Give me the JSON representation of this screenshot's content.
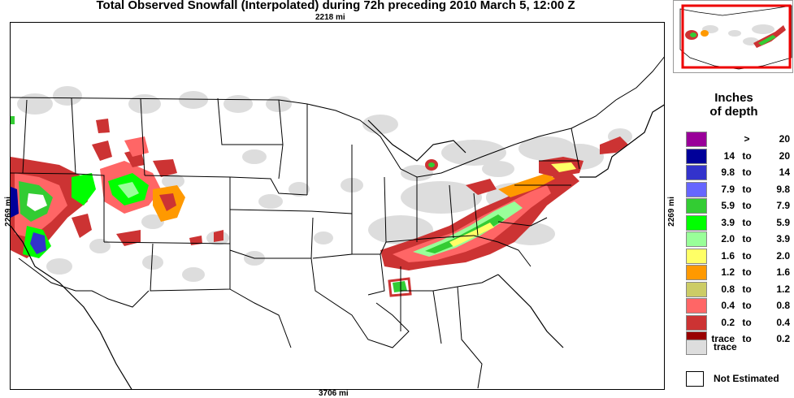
{
  "title": "Total Observed Snowfall (Interpolated) during 72h preceding 2010 March 5, 12:00 Z",
  "distances": {
    "top": "2218 mi",
    "bottom": "3706 mi",
    "left": "2269 mi",
    "right": "2269 mi"
  },
  "legend": {
    "title_line1": "Inches",
    "title_line2": "of depth",
    "rows": [
      {
        "lo": "",
        "to": ">",
        "hi": "20",
        "color": "#990099"
      },
      {
        "lo": "14",
        "to": "to",
        "hi": "20",
        "color": "#000099"
      },
      {
        "lo": "9.8",
        "to": "to",
        "hi": "14",
        "color": "#3333cc"
      },
      {
        "lo": "7.9",
        "to": "to",
        "hi": "9.8",
        "color": "#6666ff"
      },
      {
        "lo": "5.9",
        "to": "to",
        "hi": "7.9",
        "color": "#33cc33"
      },
      {
        "lo": "3.9",
        "to": "to",
        "hi": "5.9",
        "color": "#00ff00"
      },
      {
        "lo": "2.0",
        "to": "to",
        "hi": "3.9",
        "color": "#99ff99"
      },
      {
        "lo": "1.6",
        "to": "to",
        "hi": "2.0",
        "color": "#ffff66"
      },
      {
        "lo": "1.2",
        "to": "to",
        "hi": "1.6",
        "color": "#ff9900"
      },
      {
        "lo": "0.8",
        "to": "to",
        "hi": "1.2",
        "color": "#cccc66"
      },
      {
        "lo": "0.4",
        "to": "to",
        "hi": "0.8",
        "color": "#ff6666"
      },
      {
        "lo": "0.2",
        "to": "to",
        "hi": "0.4",
        "color": "#cc3333"
      },
      {
        "lo": "trace",
        "to": "to",
        "hi": "0.2",
        "color": "#990000"
      }
    ],
    "trace_label": "trace",
    "trace_color": "#dddddd",
    "not_estimated_label": "Not Estimated"
  }
}
